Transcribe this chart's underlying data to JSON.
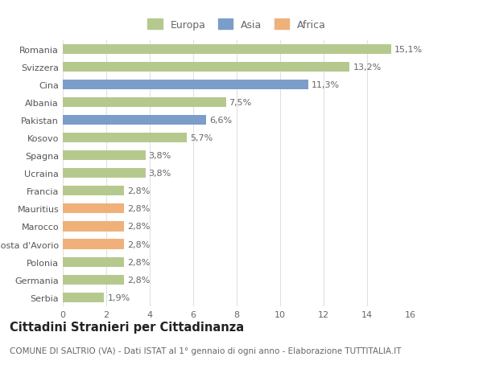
{
  "categories": [
    "Romania",
    "Svizzera",
    "Cina",
    "Albania",
    "Pakistan",
    "Kosovo",
    "Spagna",
    "Ucraina",
    "Francia",
    "Mauritius",
    "Marocco",
    "Costa d'Avorio",
    "Polonia",
    "Germania",
    "Serbia"
  ],
  "values": [
    15.1,
    13.2,
    11.3,
    7.5,
    6.6,
    5.7,
    3.8,
    3.8,
    2.8,
    2.8,
    2.8,
    2.8,
    2.8,
    2.8,
    1.9
  ],
  "labels": [
    "15,1%",
    "13,2%",
    "11,3%",
    "7,5%",
    "6,6%",
    "5,7%",
    "3,8%",
    "3,8%",
    "2,8%",
    "2,8%",
    "2,8%",
    "2,8%",
    "2,8%",
    "2,8%",
    "1,9%"
  ],
  "continents": [
    "Europa",
    "Europa",
    "Asia",
    "Europa",
    "Asia",
    "Europa",
    "Europa",
    "Europa",
    "Europa",
    "Africa",
    "Africa",
    "Africa",
    "Europa",
    "Europa",
    "Europa"
  ],
  "colors": {
    "Europa": "#b5c98e",
    "Asia": "#7b9dc9",
    "Africa": "#f0b07a"
  },
  "legend": [
    "Europa",
    "Asia",
    "Africa"
  ],
  "xlim": [
    0,
    16
  ],
  "xticks": [
    0,
    2,
    4,
    6,
    8,
    10,
    12,
    14,
    16
  ],
  "title": "Cittadini Stranieri per Cittadinanza",
  "subtitle": "COMUNE DI SALTRIO (VA) - Dati ISTAT al 1° gennaio di ogni anno - Elaborazione TUTTITALIA.IT",
  "background_color": "#ffffff",
  "grid_color": "#e0e0e0",
  "bar_height": 0.55,
  "label_fontsize": 8,
  "tick_fontsize": 8,
  "title_fontsize": 10.5,
  "subtitle_fontsize": 7.5
}
